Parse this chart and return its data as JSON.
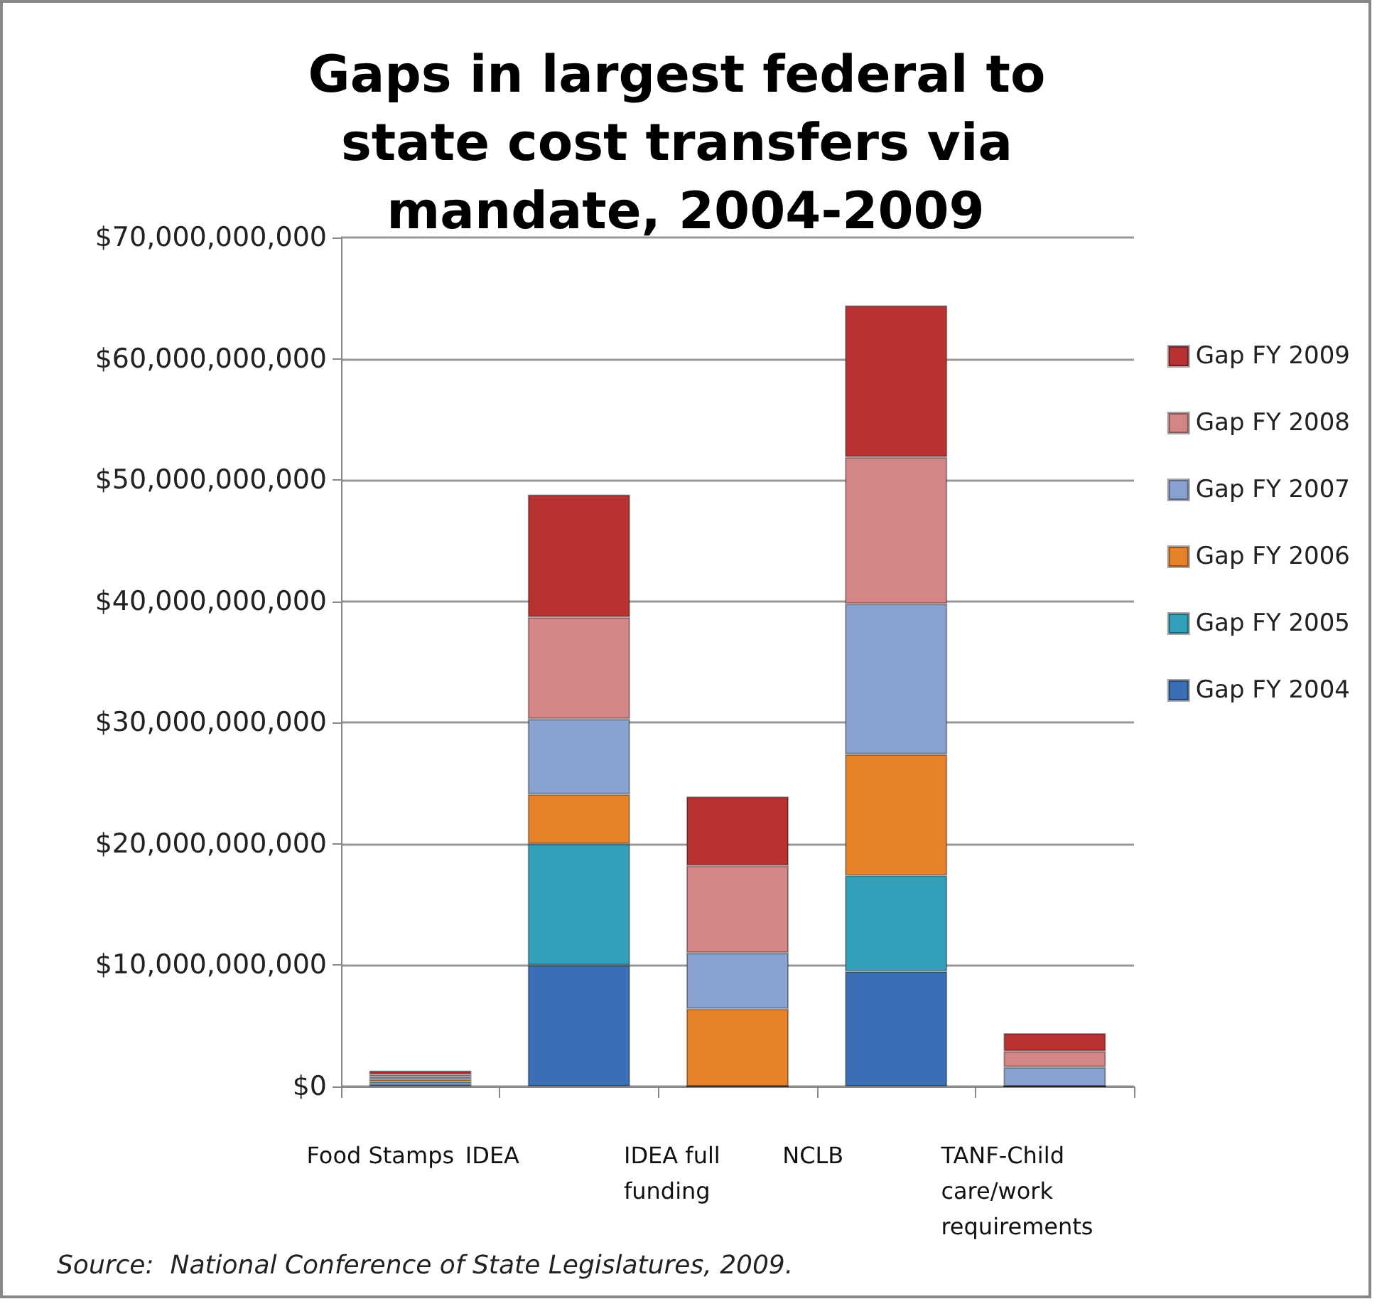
{
  "chart_data": {
    "type": "bar",
    "title": "Gaps in largest federal to state cost transfers via mandate, 2004-2009",
    "categories": [
      "Food Stamps",
      "IDEA",
      "IDEA full funding",
      "NCLB",
      "TANF-Child care/work requirements"
    ],
    "series": [
      {
        "name": "Gap FY 2004",
        "color": "#3a6fb5",
        "values": [
          200000000,
          10000000000,
          0,
          9500000000,
          0
        ]
      },
      {
        "name": "Gap FY 2005",
        "color": "#31a0b8",
        "values": [
          200000000,
          10000000000,
          0,
          7900000000,
          0
        ]
      },
      {
        "name": "Gap FY 2006",
        "color": "#e8822a",
        "values": [
          200000000,
          4100000000,
          6400000000,
          10000000000,
          0
        ]
      },
      {
        "name": "Gap FY 2007",
        "color": "#8aa2cf",
        "values": [
          200000000,
          6200000000,
          4600000000,
          12400000000,
          1600000000
        ]
      },
      {
        "name": "Gap FY 2008",
        "color": "#d48686",
        "values": [
          200000000,
          8400000000,
          7200000000,
          12100000000,
          1300000000
        ]
      },
      {
        "name": "Gap FY 2009",
        "color": "#b83232",
        "values": [
          300000000,
          10100000000,
          5700000000,
          12500000000,
          1500000000
        ]
      }
    ],
    "stacked": true,
    "ylim": [
      0,
      70000000000
    ],
    "yticks": [
      {
        "value": 0,
        "label": "$0"
      },
      {
        "value": 10000000000,
        "label": "$10,000,000,000"
      },
      {
        "value": 20000000000,
        "label": "$20,000,000,000"
      },
      {
        "value": 30000000000,
        "label": "$30,000,000,000"
      },
      {
        "value": 40000000000,
        "label": "$40,000,000,000"
      },
      {
        "value": 50000000000,
        "label": "$50,000,000,000"
      },
      {
        "value": 60000000000,
        "label": "$60,000,000,000"
      },
      {
        "value": 70000000000,
        "label": "$70,000,000,000"
      }
    ],
    "grid": "y",
    "legend": "right",
    "annotations": [
      "Source:  National Conference of State Legislatures, 2009."
    ]
  }
}
